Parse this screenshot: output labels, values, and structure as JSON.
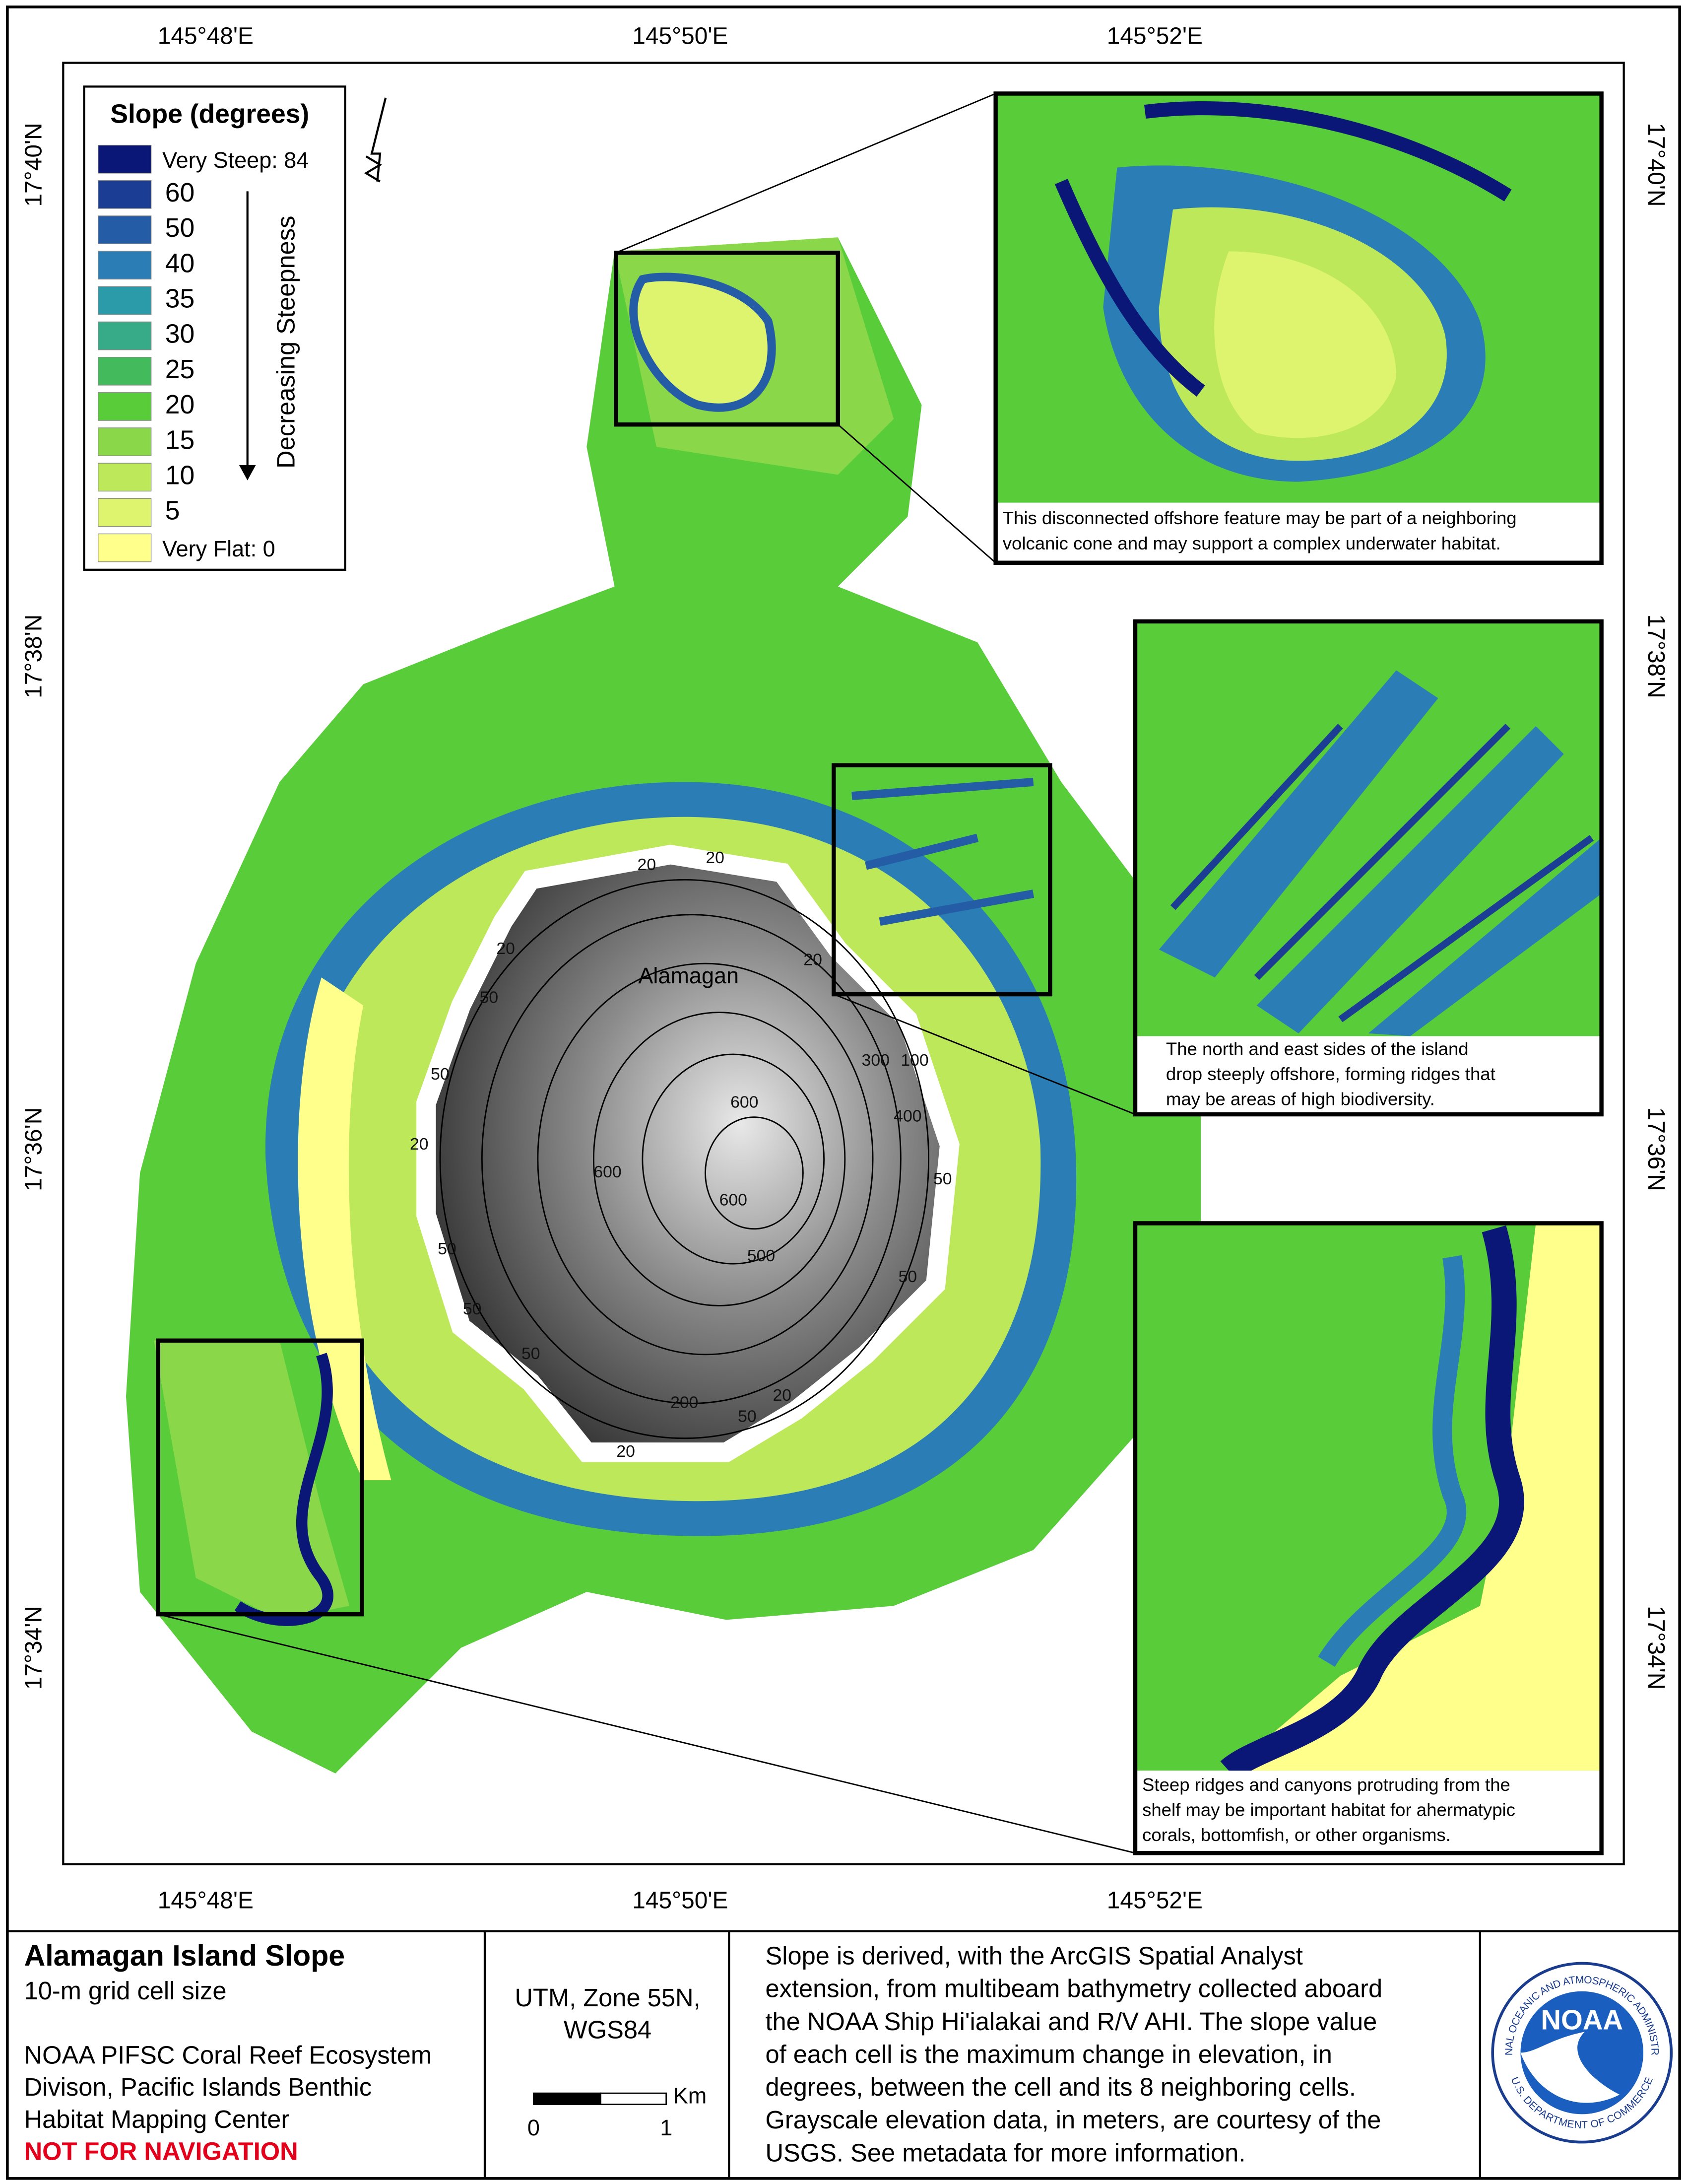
{
  "map": {
    "longitude_labels": [
      "145°48'E",
      "145°50'E",
      "145°52'E"
    ],
    "latitude_labels": [
      "17°40'N",
      "17°38'N",
      "17°36'N",
      "17°34'N"
    ],
    "island_label": "Alamagan",
    "contour_labels": [
      "20",
      "20",
      "20",
      "20",
      "20",
      "20",
      "20",
      "50",
      "50",
      "50",
      "50",
      "50",
      "50",
      "50",
      "50",
      "100",
      "200",
      "300",
      "400",
      "600",
      "600",
      "600",
      "500"
    ],
    "legend": {
      "title": "Slope (degrees)",
      "arrow_label": "Decreasing Steepness",
      "items": [
        {
          "label": "Very Steep: 84",
          "color": "#0b1776"
        },
        {
          "label": "60",
          "color": "#1c3d94"
        },
        {
          "label": "50",
          "color": "#245ca6"
        },
        {
          "label": "40",
          "color": "#2a7db5"
        },
        {
          "label": "35",
          "color": "#2b9aa9"
        },
        {
          "label": "30",
          "color": "#37ab88"
        },
        {
          "label": "25",
          "color": "#43bb5d"
        },
        {
          "label": "20",
          "color": "#58cc39"
        },
        {
          "label": "15",
          "color": "#8ad84a"
        },
        {
          "label": "10",
          "color": "#bde85a"
        },
        {
          "label": "5",
          "color": "#def46e"
        },
        {
          "label": "Very Flat: 0",
          "color": "#ffff8c"
        }
      ]
    },
    "insets": [
      {
        "caption": [
          "This disconnected offshore feature may be part of a neighboring",
          "volcanic cone and may support a complex underwater habitat."
        ]
      },
      {
        "caption": [
          "The north and east sides of the island",
          "drop steeply offshore, forming ridges that",
          "may be areas of high biodiversity."
        ]
      },
      {
        "caption": [
          "Steep ridges and canyons protruding from the",
          "shelf may be important habitat for ahermatypic",
          "corals, bottomfish, or other organisms."
        ]
      }
    ]
  },
  "footer": {
    "title": "Alamagan Island Slope",
    "subtitle": "10-m grid cell size",
    "credit": [
      "NOAA PIFSC Coral Reef Ecosystem",
      "Divison, Pacific Islands Benthic",
      "Habitat Mapping Center"
    ],
    "warning": "NOT FOR NAVIGATION",
    "projection": [
      "UTM, Zone 55N,",
      "WGS84"
    ],
    "scale": {
      "unit": "Km",
      "ticks": [
        "0",
        "1"
      ]
    },
    "description": [
      "Slope is derived, with the ArcGIS Spatial Analyst",
      "extension, from multibeam bathymetry collected aboard",
      "the NOAA Ship Hi'ialakai and R/V AHI. The slope value",
      "of each cell is the maximum change in elevation, in",
      "degrees, between the cell and its 8 neighboring cells.",
      "Grayscale elevation data, in meters, are courtesy of the",
      "USGS. See metadata for more information."
    ],
    "logo": {
      "name": "NOAA",
      "outer_text": "NATIONAL OCEANIC AND ATMOSPHERIC ADMINISTRATION",
      "inner_text": "U.S. DEPARTMENT OF COMMERCE"
    }
  }
}
